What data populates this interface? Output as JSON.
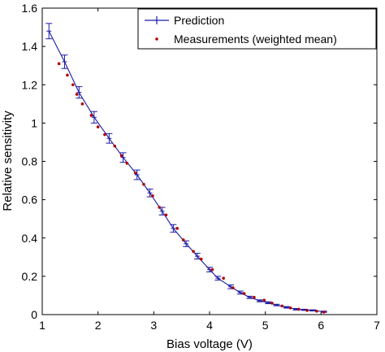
{
  "chart_data": {
    "type": "line",
    "title": "",
    "xlabel": "Bias voltage (V)",
    "ylabel": "Relative sensitivity",
    "xlim": [
      1,
      7
    ],
    "ylim": [
      0,
      1.6
    ],
    "xticks": [
      1,
      2,
      3,
      4,
      5,
      6,
      7
    ],
    "yticks": [
      0,
      0.2,
      0.4,
      0.6,
      0.8,
      1,
      1.2,
      1.4,
      1.6
    ],
    "grid": false,
    "legend_position": "top-right",
    "legend": [
      "Prediction",
      "Measurements (weighted mean)"
    ],
    "colors": {
      "prediction": "#1a1aa6",
      "measurement": "#b00000",
      "axis": "#000000"
    },
    "series": [
      {
        "name": "Prediction",
        "style": "line-with-errorbars",
        "x": [
          1.12,
          1.4,
          1.66,
          1.93,
          2.2,
          2.45,
          2.7,
          2.93,
          3.15,
          3.35,
          3.58,
          3.78,
          4.0,
          4.15,
          4.38,
          4.55,
          4.72,
          4.9,
          5.05,
          5.2,
          5.38,
          5.55,
          5.7,
          5.85,
          6.05
        ],
        "y": [
          1.48,
          1.32,
          1.16,
          1.03,
          0.92,
          0.82,
          0.73,
          0.635,
          0.54,
          0.45,
          0.37,
          0.305,
          0.235,
          0.19,
          0.145,
          0.115,
          0.09,
          0.072,
          0.062,
          0.05,
          0.038,
          0.028,
          0.025,
          0.022,
          0.015
        ],
        "err": [
          0.04,
          0.035,
          0.03,
          0.03,
          0.025,
          0.025,
          0.025,
          0.02,
          0.02,
          0.02,
          0.015,
          0.015,
          0.012,
          0.01,
          0.01,
          0.008,
          0.006,
          0.005,
          0.005,
          0.004,
          0.004,
          0.004,
          0.003,
          0.003,
          0.003
        ]
      },
      {
        "name": "Measurements (weighted mean)",
        "style": "dots",
        "x": [
          1.3,
          1.45,
          1.55,
          1.62,
          1.72,
          1.88,
          2.0,
          2.12,
          2.3,
          2.42,
          2.52,
          2.67,
          2.82,
          2.98,
          3.1,
          3.22,
          3.42,
          3.53,
          3.71,
          3.85,
          4.05,
          4.25,
          4.42,
          4.62,
          4.8,
          4.98,
          5.12,
          5.3,
          5.45,
          5.6,
          5.75,
          5.92,
          6.05
        ],
        "y": [
          1.31,
          1.25,
          1.2,
          1.15,
          1.1,
          1.04,
          0.98,
          0.94,
          0.88,
          0.83,
          0.79,
          0.74,
          0.68,
          0.62,
          0.56,
          0.52,
          0.45,
          0.39,
          0.33,
          0.29,
          0.235,
          0.19,
          0.14,
          0.11,
          0.09,
          0.075,
          0.06,
          0.045,
          0.035,
          0.028,
          0.022,
          0.018,
          0.013
        ]
      }
    ]
  }
}
